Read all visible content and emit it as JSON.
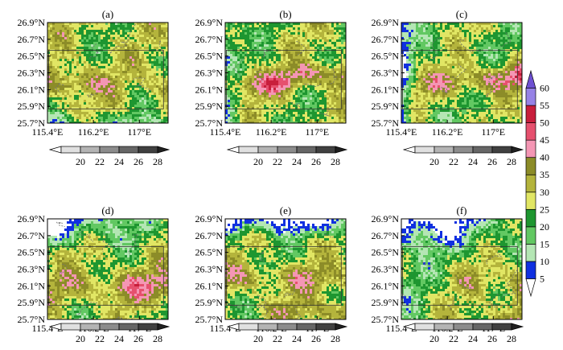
{
  "chart_data": {
    "type": "heatmap",
    "panels": [
      {
        "label": "(a)",
        "pattern": 0
      },
      {
        "label": "(b)",
        "pattern": 1
      },
      {
        "label": "(c)",
        "pattern": 2
      },
      {
        "label": "(d)",
        "pattern": 3
      },
      {
        "label": "(e)",
        "pattern": 4
      },
      {
        "label": "(f)",
        "pattern": 5
      }
    ],
    "x_ticks": [
      "115.4°E",
      "116.2°E",
      "117°E"
    ],
    "x_tick_values": [
      115.4,
      116.2,
      117.0
    ],
    "y_ticks": [
      "26.9°N",
      "26.7°N",
      "26.5°N",
      "26.3°N",
      "26.1°N",
      "25.9°N",
      "25.7°N"
    ],
    "y_tick_values": [
      26.9,
      26.7,
      26.5,
      26.3,
      26.1,
      25.9,
      25.7
    ],
    "xlim": [
      115.4,
      117.5
    ],
    "ylim": [
      25.7,
      26.9
    ],
    "inner_box": {
      "lon": [
        115.42,
        117.42
      ],
      "lat": [
        25.87,
        26.57
      ]
    },
    "contour_colorbar": {
      "labels": [
        "20",
        "22",
        "24",
        "26",
        "28"
      ],
      "colors": [
        "#ffffff",
        "#e0e0e0",
        "#b4b4b4",
        "#8c8c8c",
        "#666666",
        "#404040",
        "#202020"
      ]
    },
    "shading_colorbar": {
      "labels": [
        "5",
        "10",
        "15",
        "20",
        "25",
        "30",
        "35",
        "40",
        "45",
        "50",
        "55",
        "60"
      ],
      "colors": [
        "#ffffff",
        "#1030e0",
        "#b4e6b4",
        "#62c862",
        "#1e9630",
        "#e1e664",
        "#b4b43c",
        "#8c8c28",
        "#f496b4",
        "#e6506e",
        "#c81e3c",
        "#9682e6",
        "#6e50d2"
      ]
    }
  }
}
